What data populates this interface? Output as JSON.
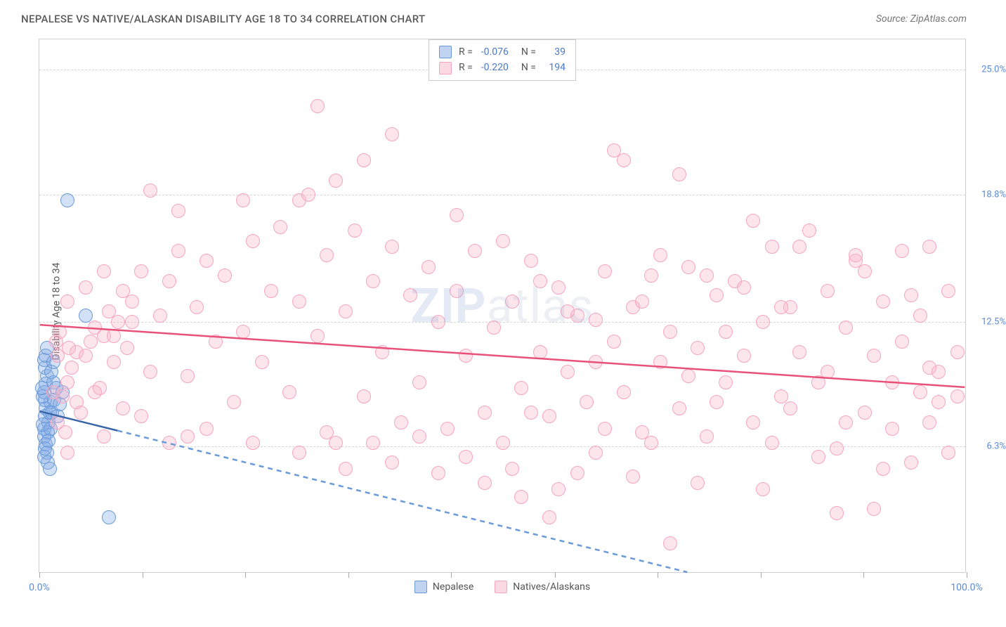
{
  "title": "NEPALESE VS NATIVE/ALASKAN DISABILITY AGE 18 TO 34 CORRELATION CHART",
  "source": "Source: ZipAtlas.com",
  "y_axis_label": "Disability Age 18 to 34",
  "watermark": {
    "bold": "ZIP",
    "rest": "atlas"
  },
  "chart": {
    "type": "scatter",
    "background_color": "#ffffff",
    "grid_color": "#d8d8d8",
    "border_color": "#d0d0d0",
    "xlim": [
      0,
      100
    ],
    "ylim": [
      0,
      26.5
    ],
    "y_ticks": [
      {
        "value": 6.3,
        "label": "6.3%"
      },
      {
        "value": 12.5,
        "label": "12.5%"
      },
      {
        "value": 18.8,
        "label": "18.8%"
      },
      {
        "value": 25.0,
        "label": "25.0%"
      }
    ],
    "x_ticks": [
      0,
      11.1,
      22.2,
      33.3,
      44.4,
      55.6,
      66.7,
      77.8,
      88.9,
      100
    ],
    "x_tick_labels": {
      "start": "0.0%",
      "end": "100.0%"
    },
    "point_radius": 10,
    "series": [
      {
        "name": "Nepalese",
        "color_fill": "rgba(130,170,230,0.35)",
        "color_stroke": "#6a9bd8",
        "css_class": "point-blue",
        "R": "-0.076",
        "N": "39",
        "trend": {
          "x1": 0,
          "y1": 8.0,
          "x2": 70,
          "y2": 0,
          "solid_frac": 0.12,
          "color": "#3865a8"
        },
        "points": [
          [
            0.5,
            6.8
          ],
          [
            0.5,
            7.2
          ],
          [
            0.6,
            7.8
          ],
          [
            0.7,
            8.2
          ],
          [
            0.6,
            8.6
          ],
          [
            0.5,
            9.0
          ],
          [
            0.7,
            9.4
          ],
          [
            0.8,
            9.8
          ],
          [
            0.6,
            10.2
          ],
          [
            0.5,
            10.6
          ],
          [
            0.7,
            6.4
          ],
          [
            0.8,
            6.0
          ],
          [
            0.9,
            7.0
          ],
          [
            1.0,
            7.5
          ],
          [
            1.1,
            8.0
          ],
          [
            1.2,
            8.5
          ],
          [
            0.4,
            7.4
          ],
          [
            0.4,
            8.8
          ],
          [
            0.3,
            9.2
          ],
          [
            0.5,
            5.8
          ],
          [
            0.6,
            6.2
          ],
          [
            0.7,
            10.8
          ],
          [
            0.8,
            11.2
          ],
          [
            1.5,
            9.5
          ],
          [
            1.0,
            6.6
          ],
          [
            1.2,
            7.2
          ],
          [
            1.4,
            8.0
          ],
          [
            1.6,
            8.6
          ],
          [
            1.8,
            9.2
          ],
          [
            2.0,
            7.8
          ],
          [
            2.2,
            8.4
          ],
          [
            2.5,
            9.0
          ],
          [
            3.0,
            18.5
          ],
          [
            5.0,
            12.8
          ],
          [
            7.5,
            2.8
          ],
          [
            0.9,
            5.5
          ],
          [
            1.1,
            5.2
          ],
          [
            1.3,
            10.0
          ],
          [
            1.5,
            10.5
          ]
        ]
      },
      {
        "name": "Natives/Alaskans",
        "color_fill": "rgba(248,180,200,0.35)",
        "color_stroke": "#f5a5c0",
        "css_class": "point-pink",
        "R": "-0.220",
        "N": "194",
        "trend": {
          "x1": 0,
          "y1": 12.3,
          "x2": 100,
          "y2": 9.2,
          "solid_frac": 1.0,
          "color": "#e8517a"
        },
        "points": [
          [
            2,
            7.5
          ],
          [
            2.5,
            8.8
          ],
          [
            3,
            9.5
          ],
          [
            3.5,
            10.2
          ],
          [
            4,
            11.0
          ],
          [
            4.5,
            8.0
          ],
          [
            5,
            10.8
          ],
          [
            5.5,
            11.5
          ],
          [
            6,
            12.2
          ],
          [
            6.5,
            9.2
          ],
          [
            7,
            11.8
          ],
          [
            7.5,
            13.0
          ],
          [
            8,
            10.5
          ],
          [
            8.5,
            12.5
          ],
          [
            9,
            14.0
          ],
          [
            9.5,
            11.2
          ],
          [
            10,
            13.5
          ],
          [
            11,
            15.0
          ],
          [
            12,
            10.0
          ],
          [
            13,
            12.8
          ],
          [
            14,
            14.5
          ],
          [
            15,
            16.0
          ],
          [
            16,
            9.8
          ],
          [
            17,
            13.2
          ],
          [
            18,
            15.5
          ],
          [
            19,
            11.5
          ],
          [
            20,
            14.8
          ],
          [
            21,
            8.5
          ],
          [
            22,
            12.0
          ],
          [
            23,
            16.5
          ],
          [
            24,
            10.5
          ],
          [
            25,
            14.0
          ],
          [
            26,
            17.2
          ],
          [
            27,
            9.0
          ],
          [
            28,
            13.5
          ],
          [
            12,
            19.0
          ],
          [
            28,
            18.5
          ],
          [
            29,
            18.8
          ],
          [
            30,
            11.8
          ],
          [
            30,
            23.2
          ],
          [
            31,
            15.8
          ],
          [
            32,
            6.5
          ],
          [
            33,
            13.0
          ],
          [
            34,
            17.0
          ],
          [
            35,
            8.8
          ],
          [
            35,
            20.5
          ],
          [
            36,
            14.5
          ],
          [
            37,
            11.0
          ],
          [
            38,
            16.2
          ],
          [
            38,
            21.8
          ],
          [
            39,
            7.5
          ],
          [
            40,
            13.8
          ],
          [
            41,
            9.5
          ],
          [
            42,
            15.2
          ],
          [
            43,
            12.5
          ],
          [
            44,
            7.2
          ],
          [
            45,
            14.0
          ],
          [
            46,
            10.8
          ],
          [
            47,
            16.0
          ],
          [
            48,
            8.0
          ],
          [
            49,
            12.2
          ],
          [
            50,
            6.5
          ],
          [
            51,
            13.5
          ],
          [
            52,
            9.2
          ],
          [
            53,
            15.5
          ],
          [
            54,
            11.0
          ],
          [
            55,
            7.8
          ],
          [
            56,
            14.2
          ],
          [
            57,
            10.0
          ],
          [
            58,
            12.8
          ],
          [
            59,
            8.5
          ],
          [
            60,
            6.0
          ],
          [
            60,
            12.6
          ],
          [
            61,
            15.0
          ],
          [
            62,
            11.5
          ],
          [
            62,
            21.0
          ],
          [
            63,
            9.0
          ],
          [
            63,
            20.5
          ],
          [
            64,
            13.2
          ],
          [
            65,
            7.0
          ],
          [
            66,
            14.8
          ],
          [
            67,
            10.5
          ],
          [
            68,
            12.0
          ],
          [
            69,
            8.2
          ],
          [
            69,
            19.8
          ],
          [
            70,
            15.2
          ],
          [
            71,
            11.2
          ],
          [
            72,
            6.8
          ],
          [
            73,
            13.8
          ],
          [
            74,
            9.5
          ],
          [
            75,
            14.5
          ],
          [
            76,
            10.8
          ],
          [
            77,
            7.5
          ],
          [
            78,
            12.5
          ],
          [
            79,
            16.2
          ],
          [
            80,
            8.8
          ],
          [
            81,
            13.2
          ],
          [
            82,
            11.0
          ],
          [
            83,
            17.0
          ],
          [
            84,
            9.5
          ],
          [
            85,
            14.0
          ],
          [
            86,
            6.2
          ],
          [
            87,
            12.2
          ],
          [
            88,
            15.5
          ],
          [
            88,
            15.8
          ],
          [
            89,
            8.0
          ],
          [
            90,
            10.8
          ],
          [
            91,
            13.5
          ],
          [
            92,
            7.2
          ],
          [
            93,
            11.5
          ],
          [
            93,
            16.0
          ],
          [
            94,
            5.5
          ],
          [
            95,
            9.0
          ],
          [
            95,
            12.8
          ],
          [
            96,
            10.2
          ],
          [
            96,
            16.2
          ],
          [
            97,
            8.5
          ],
          [
            97,
            10.0
          ],
          [
            98,
            14.0
          ],
          [
            98,
            6.0
          ],
          [
            99,
            11.0
          ],
          [
            99,
            8.8
          ],
          [
            90,
            3.2
          ],
          [
            86,
            3.0
          ],
          [
            68,
            1.5
          ],
          [
            56,
            4.2
          ],
          [
            52,
            3.8
          ],
          [
            48,
            4.5
          ],
          [
            43,
            5.0
          ],
          [
            38,
            5.5
          ],
          [
            33,
            5.2
          ],
          [
            28,
            6.0
          ],
          [
            23,
            6.5
          ],
          [
            55,
            2.8
          ],
          [
            14,
            6.5
          ],
          [
            16,
            6.8
          ],
          [
            7,
            6.8
          ],
          [
            3,
            6.0
          ],
          [
            18,
            7.2
          ],
          [
            31,
            7.0
          ],
          [
            36,
            6.5
          ],
          [
            41,
            6.8
          ],
          [
            46,
            5.8
          ],
          [
            51,
            5.2
          ],
          [
            58,
            5.0
          ],
          [
            64,
            4.8
          ],
          [
            71,
            4.5
          ],
          [
            78,
            4.2
          ],
          [
            84,
            5.8
          ],
          [
            91,
            5.2
          ],
          [
            82,
            16.2
          ],
          [
            77,
            17.5
          ],
          [
            72,
            14.8
          ],
          [
            67,
            15.8
          ],
          [
            73,
            8.5
          ],
          [
            80,
            13.2
          ],
          [
            2,
            10.8
          ],
          [
            3,
            13.5
          ],
          [
            4,
            8.5
          ],
          [
            5,
            14.2
          ],
          [
            6,
            9.0
          ],
          [
            7,
            15.0
          ],
          [
            8,
            11.8
          ],
          [
            9,
            8.2
          ],
          [
            10,
            12.5
          ],
          [
            11,
            7.8
          ],
          [
            1.5,
            9.0
          ],
          [
            1.8,
            11.5
          ],
          [
            2.2,
            12.0
          ],
          [
            2.8,
            7.0
          ],
          [
            3.2,
            11.2
          ],
          [
            15,
            18.0
          ],
          [
            22,
            18.5
          ],
          [
            32,
            19.5
          ],
          [
            45,
            17.8
          ],
          [
            50,
            16.5
          ],
          [
            53,
            8.0
          ],
          [
            57,
            13.0
          ],
          [
            61,
            7.2
          ],
          [
            66,
            6.5
          ],
          [
            74,
            12.0
          ],
          [
            79,
            6.5
          ],
          [
            87,
            7.5
          ],
          [
            96,
            7.5
          ],
          [
            94,
            13.8
          ],
          [
            92,
            9.5
          ],
          [
            89,
            15.0
          ],
          [
            85,
            10.0
          ],
          [
            81,
            8.2
          ],
          [
            76,
            14.2
          ],
          [
            70,
            9.8
          ],
          [
            65,
            13.5
          ],
          [
            60,
            10.5
          ],
          [
            54,
            14.5
          ]
        ]
      }
    ]
  },
  "legend_bottom": [
    {
      "swatch_class": "sw-blue",
      "label": "Nepalese"
    },
    {
      "swatch_class": "sw-pink",
      "label": "Natives/Alaskans"
    }
  ]
}
